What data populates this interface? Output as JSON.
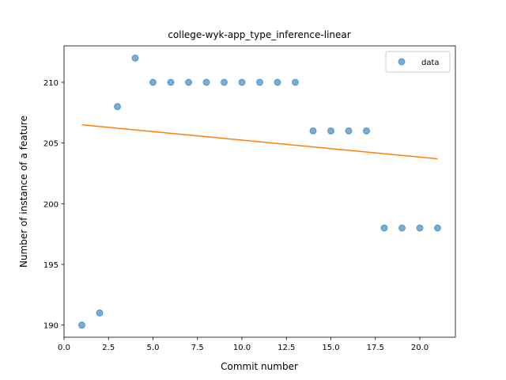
{
  "chart_data": {
    "type": "scatter",
    "title": "college-wyk-app_type_inference-linear",
    "xlabel": "Commit number",
    "ylabel": "Number of instance of a feature",
    "xlim": [
      0,
      22
    ],
    "ylim": [
      189,
      213
    ],
    "xticks": [
      0.0,
      2.5,
      5.0,
      7.5,
      10.0,
      12.5,
      15.0,
      17.5,
      20.0
    ],
    "xtick_labels": [
      "0.0",
      "2.5",
      "5.0",
      "7.5",
      "10.0",
      "12.5",
      "15.0",
      "17.5",
      "20.0"
    ],
    "yticks": [
      190,
      195,
      200,
      205,
      210
    ],
    "ytick_labels": [
      "190",
      "195",
      "200",
      "205",
      "210"
    ],
    "grid": false,
    "legend": {
      "entries": [
        "data"
      ],
      "placement": "upper right"
    },
    "series": [
      {
        "name": "data",
        "kind": "scatter",
        "color": "#1f77b4",
        "x": [
          1,
          2,
          3,
          4,
          5,
          6,
          7,
          8,
          9,
          10,
          11,
          12,
          13,
          14,
          15,
          16,
          17,
          18,
          19,
          20,
          21
        ],
        "y": [
          190,
          191,
          208,
          212,
          210,
          210,
          210,
          210,
          210,
          210,
          210,
          210,
          210,
          206,
          206,
          206,
          206,
          198,
          198,
          198,
          198
        ]
      },
      {
        "kind": "line",
        "color": "#ff7f0e",
        "x": [
          1,
          21
        ],
        "y": [
          206.5,
          203.7
        ]
      }
    ]
  }
}
